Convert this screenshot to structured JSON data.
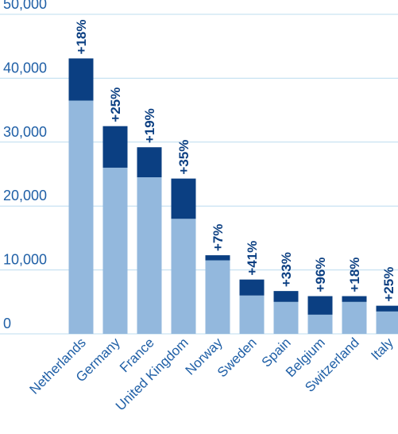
{
  "chart_data": {
    "type": "bar",
    "stacked": true,
    "categories": [
      "Netherlands",
      "Germany",
      "France",
      "United Kingdom",
      "Norway",
      "Sweden",
      "Spain",
      "Belgium",
      "Switzerland",
      "Italy"
    ],
    "series": [
      {
        "values": [
          36500,
          26000,
          24500,
          18000,
          11500,
          6000,
          5000,
          3000,
          5000,
          3500
        ]
      },
      {
        "values": [
          6600,
          6500,
          4700,
          6300,
          800,
          2500,
          1700,
          2900,
          900,
          900
        ]
      }
    ],
    "growth_labels": [
      "+18%",
      "+25%",
      "+19%",
      "+35%",
      "+7%",
      "+41%",
      "+33%",
      "+96%",
      "+18%",
      "+25%"
    ],
    "yticks": [
      "0",
      "10,000",
      "20,000",
      "30,000",
      "40,000",
      "50,000"
    ],
    "ylim": [
      0,
      50000
    ],
    "grid": true,
    "colors": {
      "base": "#93b8dd",
      "increase": "#0b3f82",
      "grid": "#bcdcef",
      "text": "#1f5fa6"
    }
  }
}
